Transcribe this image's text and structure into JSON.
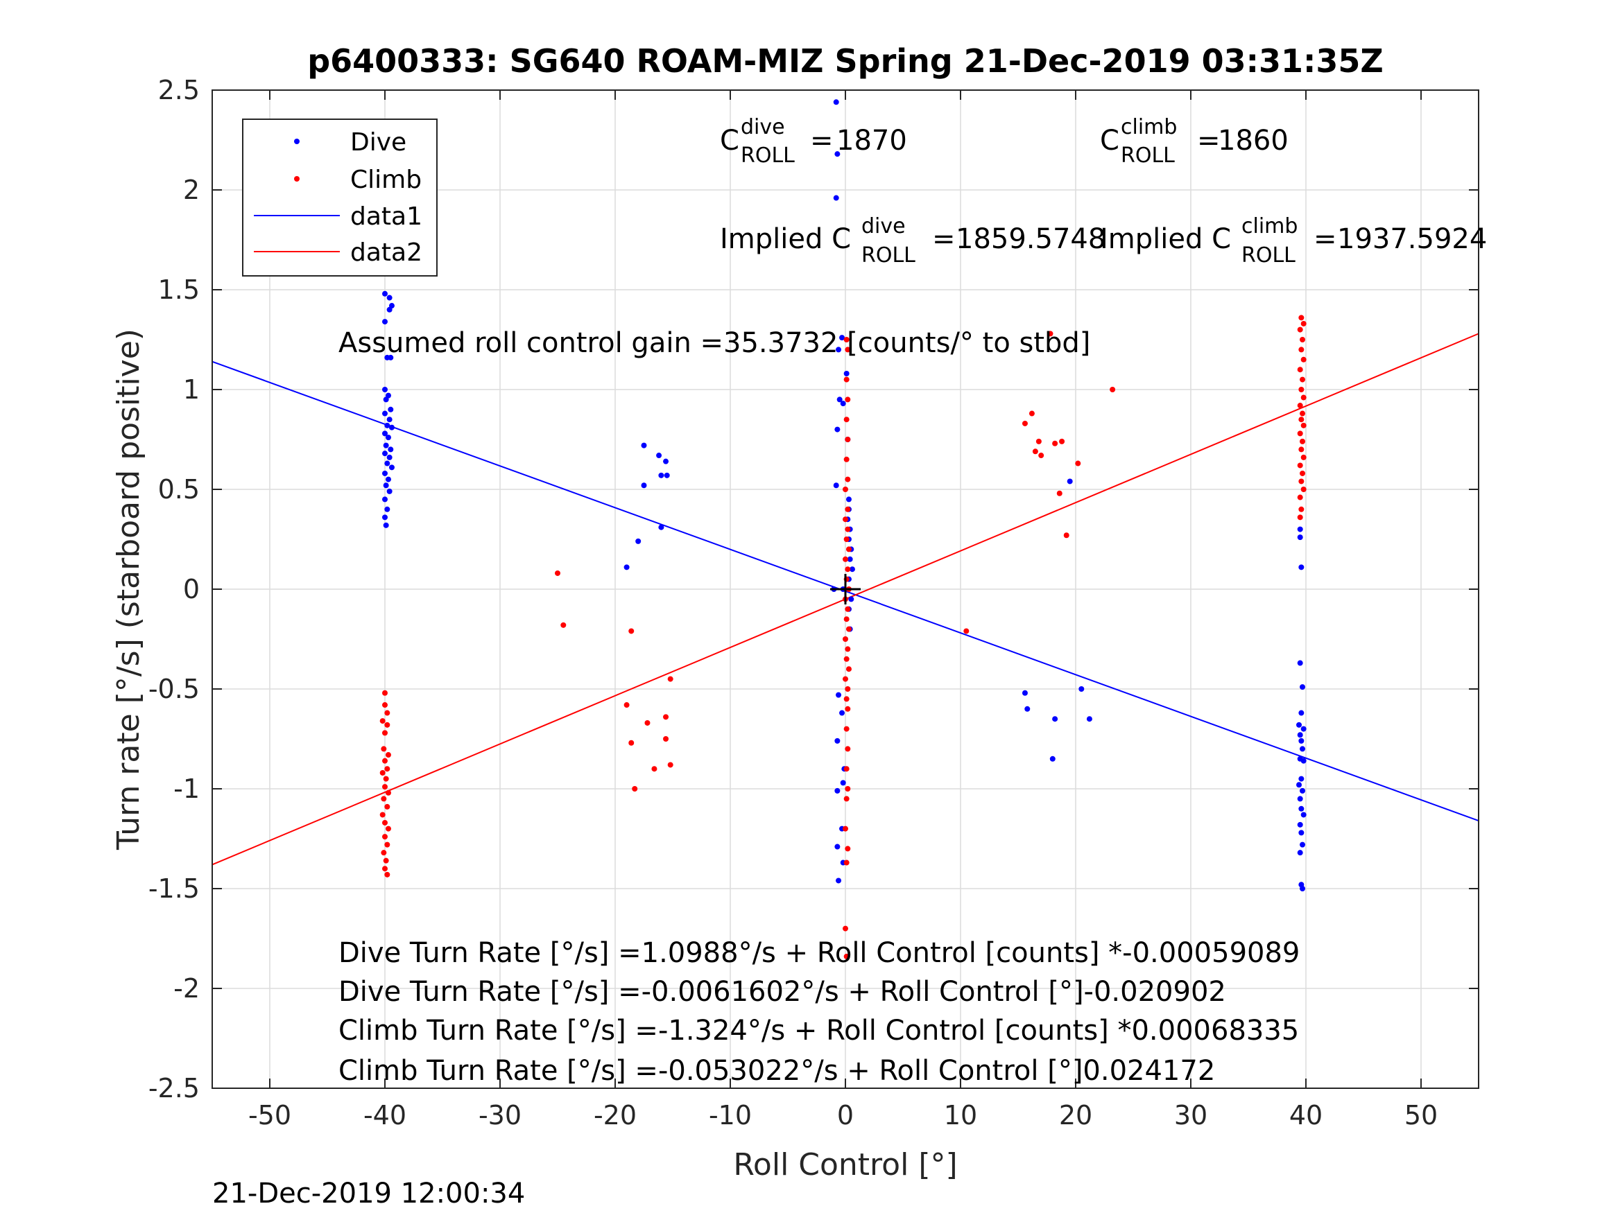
{
  "chart_data": {
    "type": "scatter",
    "title": "p6400333: SG640 ROAM-MIZ Spring 21-Dec-2019 03:31:35Z",
    "xlabel": "Roll Control [°]",
    "ylabel": "Turn rate [°/s] (starboard positive)",
    "xlim": [
      -55,
      55
    ],
    "ylim": [
      -2.5,
      2.5
    ],
    "xticks": [
      "-50",
      "-40",
      "-30",
      "-20",
      "-10",
      "0",
      "10",
      "20",
      "30",
      "40",
      "50"
    ],
    "yticks": [
      "2.5",
      "2",
      "1.5",
      "1",
      "0.5",
      "0",
      "-0.5",
      "-1",
      "-1.5",
      "-2",
      "-2.5"
    ],
    "grid": true,
    "legend_position": "top-left",
    "footer": "21-Dec-2019 12:00:34",
    "series": [
      {
        "name": "Dive",
        "color": "#0000ff",
        "marker": "dot",
        "points": [
          [
            -40,
            1.48
          ],
          [
            -39.6,
            1.46
          ],
          [
            -39.4,
            1.42
          ],
          [
            -39.6,
            1.4
          ],
          [
            -40,
            1.34
          ],
          [
            -39.8,
            1.16
          ],
          [
            -39.5,
            1.16
          ],
          [
            -40,
            1.0
          ],
          [
            -39.7,
            0.97
          ],
          [
            -39.9,
            0.95
          ],
          [
            -39.5,
            0.9
          ],
          [
            -40,
            0.88
          ],
          [
            -39.6,
            0.85
          ],
          [
            -39.8,
            0.82
          ],
          [
            -39.4,
            0.81
          ],
          [
            -40,
            0.78
          ],
          [
            -39.7,
            0.76
          ],
          [
            -39.9,
            0.72
          ],
          [
            -39.5,
            0.7
          ],
          [
            -40,
            0.68
          ],
          [
            -39.6,
            0.66
          ],
          [
            -39.8,
            0.63
          ],
          [
            -39.4,
            0.61
          ],
          [
            -40,
            0.58
          ],
          [
            -39.7,
            0.55
          ],
          [
            -39.9,
            0.52
          ],
          [
            -39.6,
            0.49
          ],
          [
            -40,
            0.45
          ],
          [
            -39.8,
            0.4
          ],
          [
            -40,
            0.36
          ],
          [
            -39.9,
            0.32
          ],
          [
            -17.5,
            0.72
          ],
          [
            -16.2,
            0.67
          ],
          [
            -15.6,
            0.64
          ],
          [
            -16,
            0.57
          ],
          [
            -15.5,
            0.57
          ],
          [
            -17.5,
            0.52
          ],
          [
            -16,
            0.31
          ],
          [
            -18,
            0.24
          ],
          [
            -19,
            0.11
          ],
          [
            -0.8,
            2.44
          ],
          [
            -0.7,
            2.18
          ],
          [
            -0.8,
            1.96
          ],
          [
            -0.3,
            1.26
          ],
          [
            -0.6,
            1.2
          ],
          [
            0.1,
            1.08
          ],
          [
            -0.5,
            0.95
          ],
          [
            -0.2,
            0.93
          ],
          [
            -0.7,
            0.8
          ],
          [
            0.2,
            0.75
          ],
          [
            -0.8,
            0.52
          ],
          [
            0.3,
            0.45
          ],
          [
            0.3,
            0.4
          ],
          [
            0.2,
            0.35
          ],
          [
            0.4,
            0.3
          ],
          [
            0.3,
            0.25
          ],
          [
            0.5,
            0.2
          ],
          [
            0.4,
            0.15
          ],
          [
            0.6,
            0.1
          ],
          [
            0.3,
            0.05
          ],
          [
            -1,
            0.0
          ],
          [
            -0.2,
            0.0
          ],
          [
            0.5,
            -0.05
          ],
          [
            0.3,
            -0.1
          ],
          [
            0.4,
            -0.2
          ],
          [
            -0.6,
            -0.53
          ],
          [
            -0.3,
            -0.62
          ],
          [
            -0.7,
            -0.76
          ],
          [
            -0.1,
            -0.9
          ],
          [
            -0.2,
            -0.97
          ],
          [
            -0.7,
            -1.01
          ],
          [
            -0.3,
            -1.2
          ],
          [
            -0.7,
            -1.29
          ],
          [
            -0.2,
            -1.37
          ],
          [
            -0.6,
            -1.46
          ],
          [
            15.6,
            -0.52
          ],
          [
            15.8,
            -0.6
          ],
          [
            19.5,
            0.54
          ],
          [
            18.2,
            -0.65
          ],
          [
            20.5,
            -0.5
          ],
          [
            21.2,
            -0.65
          ],
          [
            18,
            -0.85
          ],
          [
            39.5,
            0.3
          ],
          [
            39.5,
            0.26
          ],
          [
            39.6,
            0.11
          ],
          [
            39.5,
            -0.37
          ],
          [
            39.7,
            -0.49
          ],
          [
            39.6,
            -0.62
          ],
          [
            39.4,
            -0.68
          ],
          [
            39.8,
            -0.7
          ],
          [
            39.5,
            -0.73
          ],
          [
            39.6,
            -0.76
          ],
          [
            39.7,
            -0.8
          ],
          [
            39.5,
            -0.85
          ],
          [
            39.8,
            -0.86
          ],
          [
            39.6,
            -0.95
          ],
          [
            39.4,
            -0.98
          ],
          [
            39.7,
            -1.01
          ],
          [
            39.5,
            -1.05
          ],
          [
            39.6,
            -1.1
          ],
          [
            39.8,
            -1.13
          ],
          [
            39.5,
            -1.18
          ],
          [
            39.6,
            -1.22
          ],
          [
            39.7,
            -1.28
          ],
          [
            39.5,
            -1.32
          ],
          [
            39.6,
            -1.48
          ],
          [
            39.7,
            -1.5
          ]
        ]
      },
      {
        "name": "Climb",
        "color": "#ff0000",
        "marker": "dot",
        "points": [
          [
            -40,
            -0.52
          ],
          [
            -40,
            -0.58
          ],
          [
            -39.8,
            -0.62
          ],
          [
            -40.2,
            -0.66
          ],
          [
            -39.8,
            -0.68
          ],
          [
            -40,
            -0.72
          ],
          [
            -40.1,
            -0.8
          ],
          [
            -39.7,
            -0.83
          ],
          [
            -40,
            -0.86
          ],
          [
            -39.8,
            -0.9
          ],
          [
            -40.2,
            -0.92
          ],
          [
            -39.9,
            -0.95
          ],
          [
            -40,
            -0.99
          ],
          [
            -39.7,
            -1.02
          ],
          [
            -40.1,
            -1.05
          ],
          [
            -39.8,
            -1.09
          ],
          [
            -40.2,
            -1.13
          ],
          [
            -40,
            -1.17
          ],
          [
            -39.7,
            -1.2
          ],
          [
            -40,
            -1.24
          ],
          [
            -39.8,
            -1.28
          ],
          [
            -40.1,
            -1.32
          ],
          [
            -39.9,
            -1.36
          ],
          [
            -40,
            -1.4
          ],
          [
            -39.8,
            -1.43
          ],
          [
            -25,
            0.08
          ],
          [
            -24.5,
            -0.18
          ],
          [
            -18.6,
            -0.21
          ],
          [
            -19,
            -0.58
          ],
          [
            -17.2,
            -0.67
          ],
          [
            -15.6,
            -0.64
          ],
          [
            -15.2,
            -0.45
          ],
          [
            -18.6,
            -0.77
          ],
          [
            -15.6,
            -0.75
          ],
          [
            -16.6,
            -0.9
          ],
          [
            -15.2,
            -0.88
          ],
          [
            -18.3,
            -1.0
          ],
          [
            0.1,
            1.25
          ],
          [
            0.2,
            1.2
          ],
          [
            0.1,
            1.05
          ],
          [
            0.2,
            0.95
          ],
          [
            0.1,
            0.85
          ],
          [
            0.2,
            0.75
          ],
          [
            0.1,
            0.65
          ],
          [
            0.2,
            0.55
          ],
          [
            0,
            0.5
          ],
          [
            0.2,
            0.4
          ],
          [
            0,
            0.35
          ],
          [
            0.2,
            0.3
          ],
          [
            0.1,
            0.25
          ],
          [
            0.3,
            0.2
          ],
          [
            0,
            0.15
          ],
          [
            0.2,
            0.1
          ],
          [
            0.1,
            0.05
          ],
          [
            0.3,
            0.0
          ],
          [
            0,
            -0.05
          ],
          [
            0.2,
            -0.1
          ],
          [
            0.1,
            -0.15
          ],
          [
            0.3,
            -0.2
          ],
          [
            0,
            -0.25
          ],
          [
            0.2,
            -0.3
          ],
          [
            0.1,
            -0.35
          ],
          [
            0.3,
            -0.4
          ],
          [
            0,
            -0.45
          ],
          [
            0.2,
            -0.5
          ],
          [
            0.1,
            -0.55
          ],
          [
            0.2,
            -0.6
          ],
          [
            0.1,
            -0.7
          ],
          [
            0.2,
            -0.8
          ],
          [
            0.1,
            -0.9
          ],
          [
            0.2,
            -1.0
          ],
          [
            0.1,
            -1.05
          ],
          [
            0,
            -1.2
          ],
          [
            0.2,
            -1.3
          ],
          [
            0.1,
            -1.37
          ],
          [
            0,
            -1.7
          ],
          [
            0.1,
            -1.84
          ],
          [
            10.5,
            -0.21
          ],
          [
            17.8,
            1.28
          ],
          [
            23.2,
            1.0
          ],
          [
            16.2,
            0.88
          ],
          [
            15.6,
            0.83
          ],
          [
            16.8,
            0.74
          ],
          [
            18.2,
            0.73
          ],
          [
            18.8,
            0.74
          ],
          [
            16.5,
            0.69
          ],
          [
            17,
            0.67
          ],
          [
            20.2,
            0.63
          ],
          [
            18.6,
            0.48
          ],
          [
            19.2,
            0.27
          ],
          [
            39.6,
            1.36
          ],
          [
            39.8,
            1.33
          ],
          [
            39.5,
            1.3
          ],
          [
            39.7,
            1.25
          ],
          [
            39.6,
            1.2
          ],
          [
            39.8,
            1.15
          ],
          [
            39.5,
            1.1
          ],
          [
            39.7,
            1.05
          ],
          [
            39.6,
            1.0
          ],
          [
            39.8,
            0.96
          ],
          [
            39.5,
            0.92
          ],
          [
            39.7,
            0.88
          ],
          [
            39.6,
            0.85
          ],
          [
            39.8,
            0.82
          ],
          [
            39.5,
            0.78
          ],
          [
            39.7,
            0.74
          ],
          [
            39.6,
            0.7
          ],
          [
            39.8,
            0.66
          ],
          [
            39.5,
            0.62
          ],
          [
            39.7,
            0.58
          ],
          [
            39.6,
            0.54
          ],
          [
            39.8,
            0.5
          ],
          [
            39.5,
            0.46
          ],
          [
            39.6,
            0.4
          ],
          [
            39.5,
            0.36
          ]
        ]
      },
      {
        "name": "data1",
        "color": "#0000ff",
        "type": "line",
        "points": [
          [
            -55,
            1.14
          ],
          [
            55,
            -1.16
          ]
        ]
      },
      {
        "name": "data2",
        "color": "#ff0000",
        "type": "line",
        "points": [
          [
            -55,
            -1.38
          ],
          [
            55,
            1.28
          ]
        ]
      }
    ],
    "crosshair": [
      0,
      0
    ],
    "annotations": {
      "c_roll_dive": "1870",
      "c_roll_climb": "1860",
      "implied_dive": "1859.5748",
      "implied_climb": "1937.5924",
      "gain_text": "Assumed roll control gain =35.3732 [counts/° to stbd]",
      "eq1": "Dive Turn Rate [°/s] =1.0988°/s + Roll Control [counts] *-0.00059089",
      "eq2": "Dive Turn Rate [°/s] =-0.0061602°/s + Roll Control [°]-0.020902",
      "eq3": "Climb Turn Rate [°/s] =-1.324°/s + Roll Control [counts] *0.00068335",
      "eq4": "Climb Turn Rate [°/s] =-0.053022°/s + Roll Control [°]0.024172"
    },
    "annotation_parts": {
      "c": "C",
      "implied": "Implied C",
      "dive_sup": "dive",
      "climb_sup": "climb",
      "roll_sub": "ROLL",
      "eq_prefix": "="
    }
  }
}
